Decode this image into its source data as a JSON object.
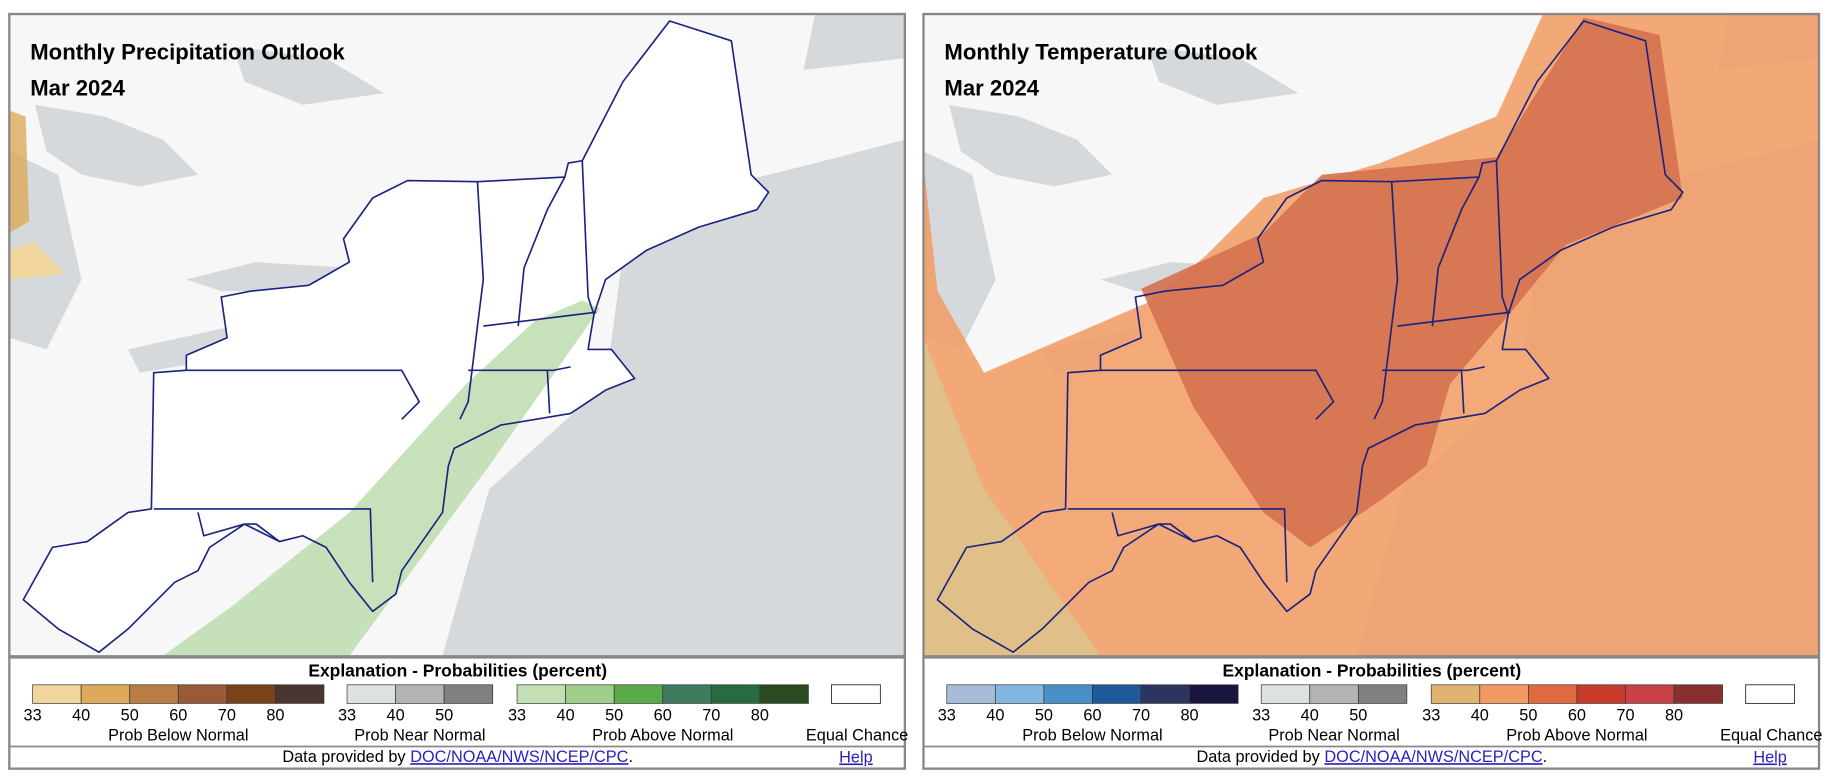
{
  "panels": [
    {
      "title": "Monthly Precipitation Outlook",
      "date": "Mar 2024",
      "legend": {
        "title": "Explanation - Probabilities (percent)",
        "groups": [
          {
            "label": "Prob Below Normal",
            "ticks": [
              33,
              40,
              50,
              60,
              70,
              80
            ],
            "colors": [
              "#f0d69c",
              "#dcaa5a",
              "#b97c45",
              "#9a5a3a",
              "#7a4218",
              "#4a3530"
            ]
          },
          {
            "label": "Prob Near Normal",
            "ticks": [
              33,
              40,
              50
            ],
            "colors": [
              "#dce2e2",
              "#b3b3b3",
              "#808080"
            ]
          },
          {
            "label": "Prob Above Normal",
            "ticks": [
              33,
              40,
              50,
              60,
              70,
              80
            ],
            "colors": [
              "#c3e0b5",
              "#9fcd8a",
              "#5aaa4a",
              "#3f7a5e",
              "#2a6a40",
              "#2a4a20"
            ]
          }
        ],
        "equal_chance": "Equal Chance"
      },
      "footer": {
        "prefix": "Data provided by",
        "link": "DOC/NOAA/NWS/NCEP/CPC",
        "suffix": ".",
        "help": "Help"
      }
    },
    {
      "title": "Monthly Temperature Outlook",
      "date": "Mar 2024",
      "legend": {
        "title": "Explanation - Probabilities (percent)",
        "groups": [
          {
            "label": "Prob Below Normal",
            "ticks": [
              33,
              40,
              50,
              60,
              70,
              80
            ],
            "colors": [
              "#a7bcd7",
              "#80b6e0",
              "#4a90c8",
              "#1d5a9a",
              "#2b3560",
              "#181540"
            ]
          },
          {
            "label": "Prob Near Normal",
            "ticks": [
              33,
              40,
              50
            ],
            "colors": [
              "#dce2e2",
              "#b3b3b3",
              "#808080"
            ]
          },
          {
            "label": "Prob Above Normal",
            "ticks": [
              33,
              40,
              50,
              60,
              70,
              80
            ],
            "colors": [
              "#e0b470",
              "#f29a62",
              "#e06a40",
              "#c83a2a",
              "#c84048",
              "#883030"
            ]
          }
        ],
        "equal_chance": "Equal Chance"
      },
      "footer": {
        "prefix": "Data provided by",
        "link": "DOC/NOAA/NWS/NCEP/CPC",
        "suffix": ".",
        "help": "Help"
      }
    }
  ]
}
